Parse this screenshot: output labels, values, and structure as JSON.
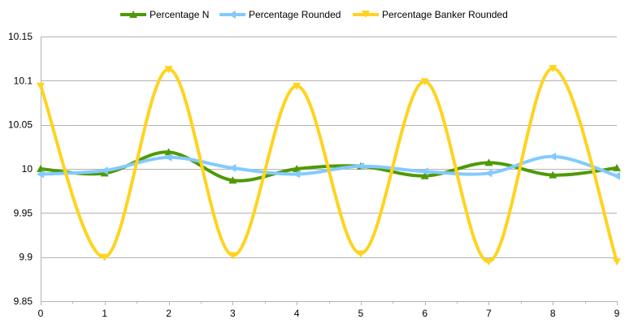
{
  "chart_data": {
    "type": "line",
    "smooth": true,
    "x": [
      0,
      1,
      2,
      3,
      4,
      5,
      6,
      7,
      8,
      9
    ],
    "ylim": [
      9.85,
      10.15
    ],
    "yticks": [
      9.85,
      9.9,
      9.95,
      10,
      10.05,
      10.1,
      10.15
    ],
    "ytick_labels": [
      "9.85",
      "9.9",
      "9.95",
      "10",
      "10.05",
      "10.1",
      "10.15"
    ],
    "xtick_labels": [
      "0",
      "1",
      "2",
      "3",
      "4",
      "5",
      "6",
      "7",
      "8",
      "9"
    ],
    "grid": "horizontal",
    "legend_position": "top",
    "series": [
      {
        "name": "Percentage N",
        "color": "#4e9a06",
        "marker": "triangle-up",
        "values": [
          10.0,
          9.995,
          10.019,
          9.987,
          10.0,
          10.003,
          9.992,
          10.007,
          9.993,
          10.001
        ]
      },
      {
        "name": "Percentage Rounded",
        "color": "#83caff",
        "marker": "triangle-left",
        "values": [
          9.994,
          9.998,
          10.013,
          10.001,
          9.994,
          10.003,
          9.997,
          9.995,
          10.014,
          9.992
        ]
      },
      {
        "name": "Percentage Banker Rounded",
        "color": "#ffd320",
        "marker": "triangle-down",
        "values": [
          10.094,
          9.9,
          10.113,
          9.902,
          10.094,
          9.904,
          10.099,
          9.895,
          10.114,
          9.895
        ]
      }
    ]
  }
}
